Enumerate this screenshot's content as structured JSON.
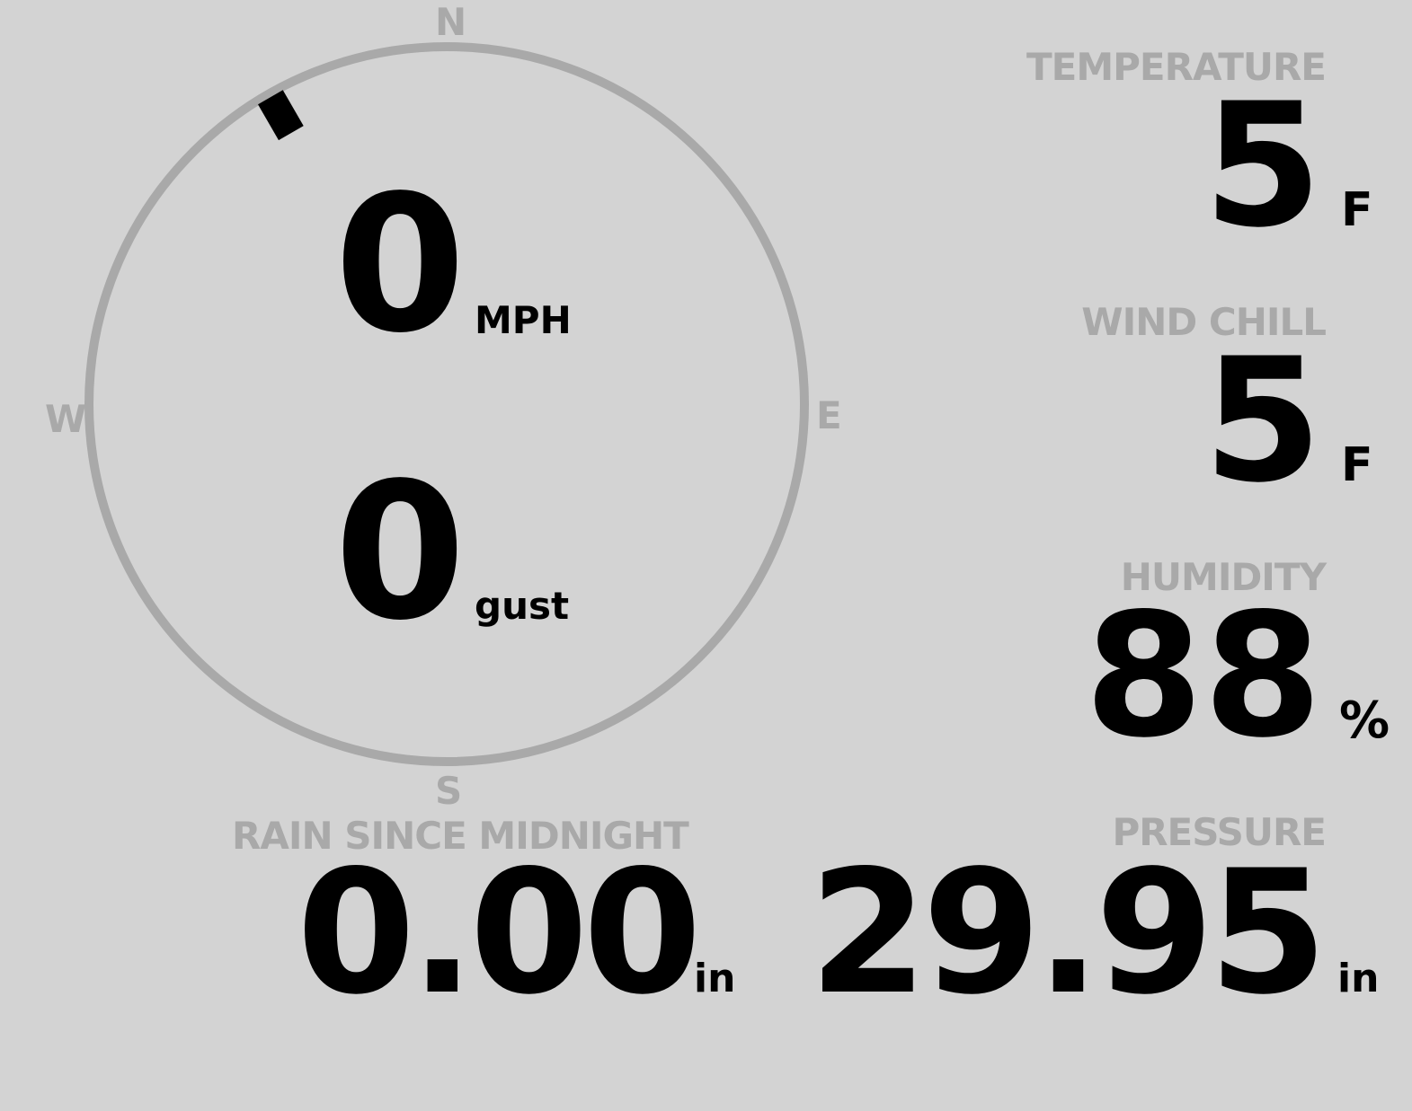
{
  "colors": {
    "background": "#d3d3d3",
    "label": "#a9a9a9",
    "value": "#000000"
  },
  "compass": {
    "north": "N",
    "south": "S",
    "east": "E",
    "west": "W",
    "wind_direction_degrees": 330,
    "wind_speed": "0",
    "wind_speed_unit": "MPH",
    "gust": "0",
    "gust_unit": "gust"
  },
  "temperature": {
    "label": "TEMPERATURE",
    "value": "5",
    "unit": "F"
  },
  "wind_chill": {
    "label": "WIND CHILL",
    "value": "5",
    "unit": "F"
  },
  "humidity": {
    "label": "HUMIDITY",
    "value": "88",
    "unit": "%"
  },
  "rain": {
    "label": "RAIN SINCE MIDNIGHT",
    "value": "0.00",
    "unit": "in"
  },
  "pressure": {
    "label": "PRESSURE",
    "value": "29.95",
    "unit": "in"
  }
}
